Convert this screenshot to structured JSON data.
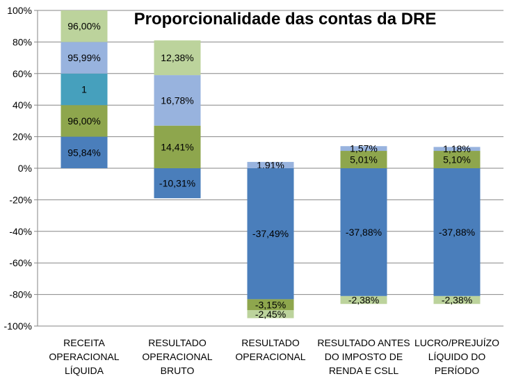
{
  "chart_data": {
    "type": "bar",
    "stacked": true,
    "title": "Proporcionalidade das contas da DRE",
    "xlabel": "",
    "ylabel": "",
    "ylim": [
      -1.0,
      1.0
    ],
    "yticks": [
      -1.0,
      -0.8,
      -0.6,
      -0.4,
      -0.2,
      0.0,
      0.2,
      0.4,
      0.6,
      0.8,
      1.0
    ],
    "ytick_labels": [
      "-100%",
      "-80%",
      "-60%",
      "-40%",
      "-20%",
      "0%",
      "20%",
      "40%",
      "60%",
      "80%",
      "100%"
    ],
    "grid": true,
    "legend": "none",
    "categories": [
      [
        "RECEITA",
        "OPERACIONAL",
        "LÍQUIDA"
      ],
      [
        "RESULTADO",
        "OPERACIONAL",
        "BRUTO"
      ],
      [
        "RESULTADO",
        "OPERACIONAL"
      ],
      [
        "RESULTADO ANTES",
        "DO IMPOSTO DE",
        "RENDA E CSLL"
      ],
      [
        "LUCRO/PREJUÍZO",
        "LÍQUIDO DO",
        "PERÍODO"
      ]
    ],
    "stacks": [
      [
        {
          "value": 0.2,
          "label": "95,84%",
          "color": "#4a7ebb"
        },
        {
          "value": 0.2,
          "label": "96,00%",
          "color": "#8ea64d"
        },
        {
          "value": 0.2,
          "label": "1",
          "color": "#46a0bd"
        },
        {
          "value": 0.2,
          "label": "95,99%",
          "color": "#98b3de"
        },
        {
          "value": 0.2,
          "label": "96,00%",
          "color": "#bcd39c"
        }
      ],
      [
        {
          "value": -0.19,
          "label": "-10,31%",
          "color": "#4a7ebb"
        },
        {
          "value": 0.27,
          "label": "14,41%",
          "color": "#8ea64d"
        },
        {
          "value": 0.32,
          "label": "16,78%",
          "color": "#98b3de"
        },
        {
          "value": 0.22,
          "label": "12,38%",
          "color": "#bcd39c"
        }
      ],
      [
        {
          "value": 0.04,
          "label": "1,91%",
          "color": "#98b3de"
        },
        {
          "value": -0.83,
          "label": "-37,49%",
          "color": "#4a7ebb"
        },
        {
          "value": -0.07,
          "label": "-3,15%",
          "color": "#8ea64d"
        },
        {
          "value": -0.05,
          "label": "-2,45%",
          "color": "#bcd39c"
        }
      ],
      [
        {
          "value": 0.11,
          "label": "5,01%",
          "color": "#8ea64d"
        },
        {
          "value": 0.03,
          "label": "1,57%",
          "color": "#98b3de"
        },
        {
          "value": -0.81,
          "label": "-37,88%",
          "color": "#4a7ebb"
        },
        {
          "value": -0.05,
          "label": "-2,38%",
          "color": "#bcd39c"
        }
      ],
      [
        {
          "value": 0.11,
          "label": "5,10%",
          "color": "#8ea64d"
        },
        {
          "value": 0.025,
          "label": "1,18%",
          "color": "#98b3de"
        },
        {
          "value": -0.81,
          "label": "-37,88%",
          "color": "#4a7ebb"
        },
        {
          "value": -0.05,
          "label": "-2,38%",
          "color": "#bcd39c"
        }
      ]
    ]
  }
}
